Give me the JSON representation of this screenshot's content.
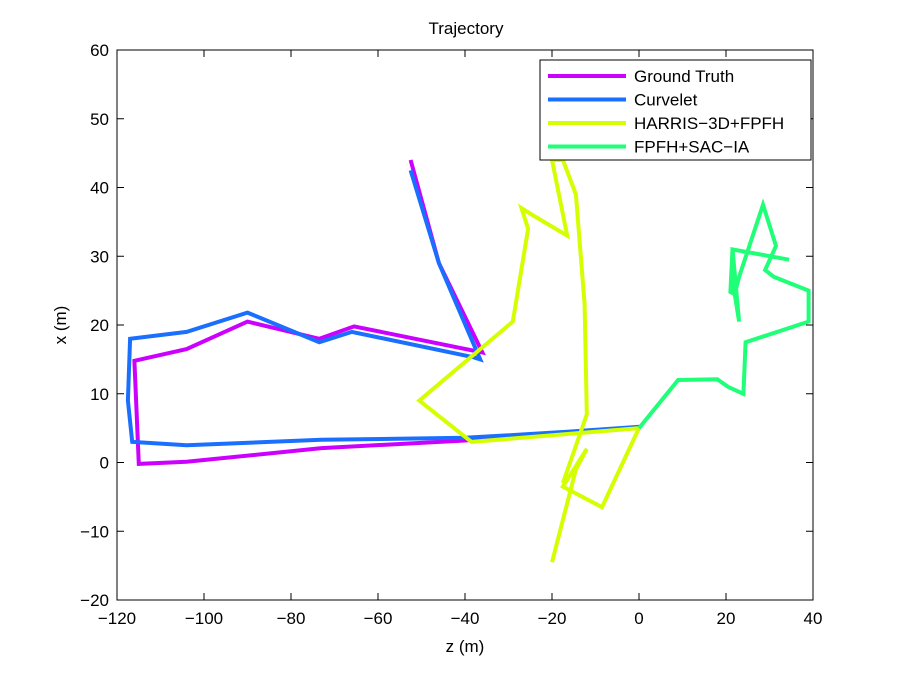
{
  "chart_data": {
    "type": "line",
    "title": "Trajectory",
    "xlabel": "z (m)",
    "ylabel": "x (m)",
    "xlim": [
      -120,
      40
    ],
    "ylim": [
      -20,
      60
    ],
    "xticks": [
      "−120",
      "−100",
      "−80",
      "−60",
      "−40",
      "−20",
      "0",
      "20",
      "40"
    ],
    "yticks": [
      "−20",
      "−10",
      "0",
      "10",
      "20",
      "30",
      "40",
      "50",
      "60"
    ],
    "xtick_values": [
      -120,
      -100,
      -80,
      -60,
      -40,
      -20,
      0,
      20,
      40
    ],
    "ytick_values": [
      -20,
      -10,
      0,
      10,
      20,
      30,
      40,
      50,
      60
    ],
    "legend_position": "top-right",
    "grid": false,
    "series": [
      {
        "name": "Ground Truth",
        "color": "#cc00ff",
        "x": [
          -52.5,
          -46,
          -36,
          -65.5,
          -73.5,
          -90,
          -104,
          -116,
          -115,
          -104,
          -73,
          -40,
          -26,
          -16,
          0
        ],
        "y": [
          44,
          29,
          16,
          19.8,
          18,
          20.5,
          16.5,
          14.8,
          -0.2,
          0.1,
          2.1,
          3.2,
          3.9,
          4.4,
          5
        ]
      },
      {
        "name": "Curvelet",
        "color": "#1a6fff",
        "x": [
          -52.5,
          -46,
          -36.5,
          -38,
          -66,
          -73.5,
          -90,
          -104,
          -117,
          -117.5,
          -116.5,
          -104,
          -73,
          -40,
          -26,
          -16,
          0
        ],
        "y": [
          42.5,
          29,
          15,
          15.3,
          19,
          17.5,
          21.8,
          19,
          18,
          9,
          3,
          2.5,
          3.3,
          3.6,
          4.1,
          4.5,
          5.2
        ]
      },
      {
        "name": "HARRIS−3D+FPFH",
        "color": "#d4ff00",
        "x": [
          -20,
          -14.5,
          -12,
          -17.5,
          -8.5,
          0,
          -38.5,
          -50.5,
          -29,
          -25.5,
          -27,
          -24.5,
          -16.5,
          -20,
          -17.5,
          -14.5,
          -12.5,
          -12,
          -17.5
        ],
        "y": [
          -14.5,
          -1,
          2,
          -3.5,
          -6.5,
          5,
          3,
          9,
          20.5,
          34,
          37,
          36,
          33,
          44,
          44,
          39,
          23,
          7,
          -3
        ]
      },
      {
        "name": "FPFH+SAC−IA",
        "color": "#1fff78",
        "x": [
          0,
          9,
          18,
          20.5,
          24,
          24.5,
          39,
          39,
          31,
          29,
          31.5,
          28.5,
          23,
          22,
          21,
          21.5,
          23,
          22,
          21.5,
          34.5
        ],
        "y": [
          5,
          12,
          12.1,
          11,
          10,
          17.5,
          20.5,
          25,
          27,
          28,
          31.5,
          37.5,
          27,
          24.5,
          24.8,
          31,
          20.5,
          24.5,
          31,
          29.5
        ]
      }
    ]
  }
}
